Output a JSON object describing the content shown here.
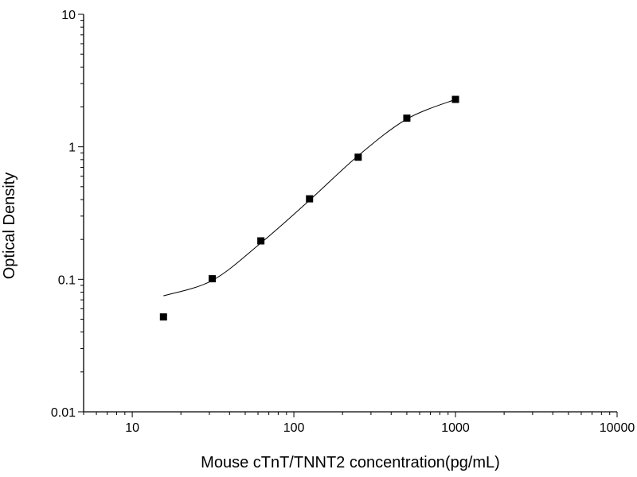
{
  "chart_data": {
    "type": "scatter",
    "xlabel": "Mouse cTnT/TNNT2 concentration(pg/mL)",
    "ylabel": "Optical Density",
    "xscale": "log",
    "yscale": "log",
    "xlim": [
      5,
      10000
    ],
    "ylim": [
      0.01,
      10
    ],
    "grid": false,
    "legend": "none",
    "x_tick_labels": [
      "10",
      "100",
      "1000",
      "10000"
    ],
    "y_tick_labels": [
      "0.01",
      "0.1",
      "1",
      "10"
    ],
    "series": [
      {
        "kind": "points",
        "marker": "square",
        "color": "#000000",
        "x": [
          15.6,
          31.25,
          62.5,
          125,
          250,
          500,
          1000
        ],
        "y": [
          0.052,
          0.101,
          0.195,
          0.405,
          0.835,
          1.645,
          2.28
        ]
      },
      {
        "kind": "curve",
        "color": "#000000",
        "x": [
          15.6,
          31.25,
          62.5,
          125,
          250,
          500,
          1000
        ],
        "y": [
          0.075,
          0.098,
          0.188,
          0.395,
          0.857,
          1.62,
          2.28
        ]
      }
    ]
  }
}
